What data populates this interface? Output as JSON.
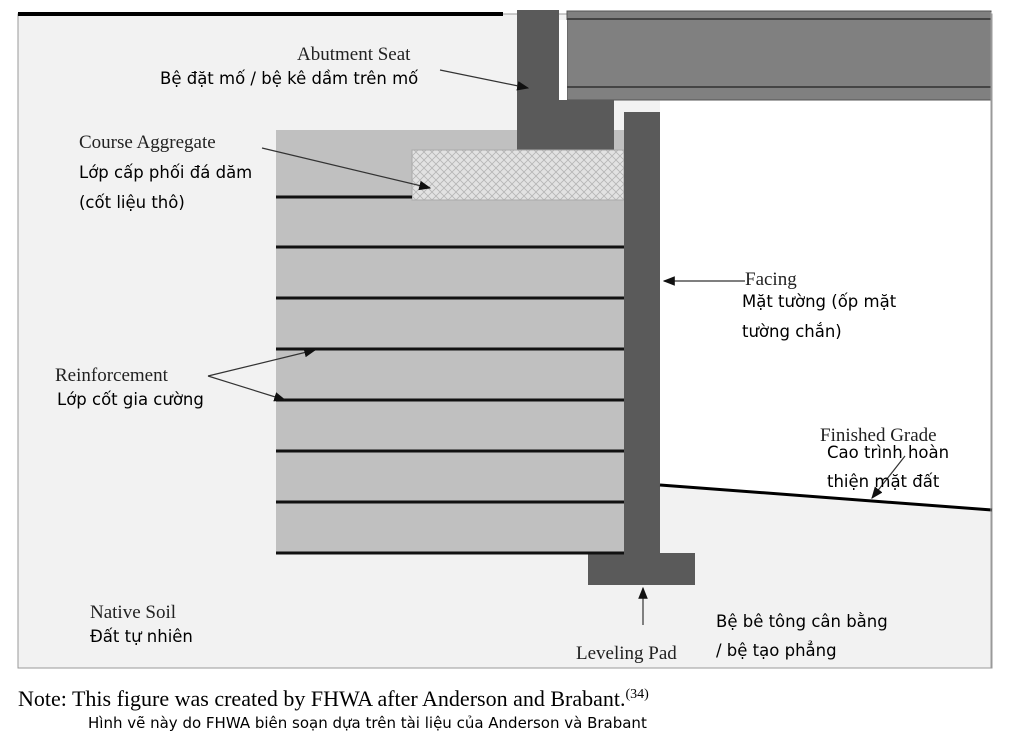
{
  "colors": {
    "soil": "#f2f2f2",
    "fill": "#c0c0c0",
    "concrete": "#5a5a5a",
    "girder": "#808080",
    "aggregate": "#e0e0e0"
  },
  "labels": {
    "abutment_seat": {
      "en": "Abutment Seat",
      "vi": "Bệ đặt mố / bệ kê dầm trên mố"
    },
    "course_aggregate": {
      "en": "Course Aggregate",
      "vi1": "Lớp cấp phối đá dăm",
      "vi2": "(cốt liệu thô)"
    },
    "facing": {
      "en": "Facing",
      "vi1": "Mặt tường (ốp mặt",
      "vi2": "tường chắn)"
    },
    "reinforcement": {
      "en": "Reinforcement",
      "vi": "Lớp cốt gia cường"
    },
    "finished_grade": {
      "en": "Finished Grade",
      "vi1": "Cao trình hoàn",
      "vi2": "thiện mặt đất"
    },
    "native_soil": {
      "en": "Native Soil",
      "vi": "Đất tự nhiên"
    },
    "leveling_pad": {
      "en": "Leveling Pad",
      "vi1": "Bệ bê tông cân bằng",
      "vi2": "/ bệ tạo phẳng"
    }
  },
  "note": {
    "en": "Note: This figure was created by FHWA after Anderson and Brabant.",
    "ref": "(34)",
    "vi": "Hình vẽ này do FHWA biên soạn dựa trên tài liệu của Anderson và Brabant"
  }
}
